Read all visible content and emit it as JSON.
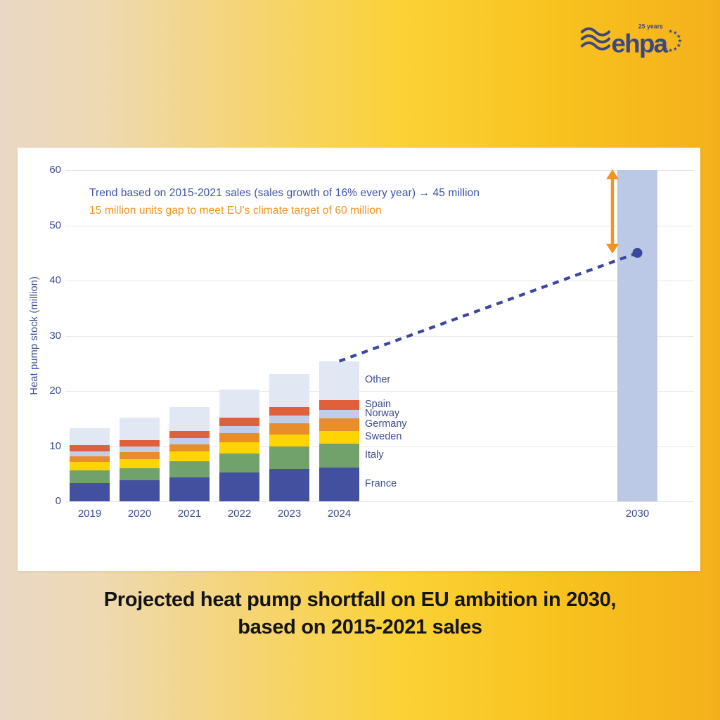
{
  "logo": {
    "brand": "ehpa",
    "badge": "25 years"
  },
  "caption": {
    "line1": "Projected heat pump shortfall on EU ambition in 2030,",
    "line2": "based on 2015-2021 sales"
  },
  "chart_data": {
    "type": "bar",
    "stacked": true,
    "title": "",
    "xlabel": "",
    "ylabel": "Heat pump stock (million)",
    "ylim": [
      0,
      60
    ],
    "ytick_step": 10,
    "grid": true,
    "categories": [
      "2019",
      "2020",
      "2021",
      "2022",
      "2023",
      "2024"
    ],
    "series": [
      {
        "name": "France",
        "color": "#4350a0",
        "values": [
          3.3,
          3.8,
          4.3,
          5.2,
          5.9,
          6.1
        ]
      },
      {
        "name": "Italy",
        "color": "#71a26c",
        "values": [
          2.3,
          2.2,
          2.9,
          3.5,
          4.0,
          4.3
        ]
      },
      {
        "name": "Sweden",
        "color": "#ffd403",
        "values": [
          1.5,
          1.7,
          1.8,
          2.0,
          2.2,
          2.4
        ]
      },
      {
        "name": "Germany",
        "color": "#e88d2c",
        "values": [
          1.1,
          1.2,
          1.3,
          1.6,
          2.0,
          2.25
        ]
      },
      {
        "name": "Norway",
        "color": "#c2cee8",
        "values": [
          0.9,
          1.0,
          1.2,
          1.3,
          1.4,
          1.55
        ]
      },
      {
        "name": "Spain",
        "color": "#e0603c",
        "values": [
          1.1,
          1.2,
          1.3,
          1.5,
          1.6,
          1.75
        ]
      },
      {
        "name": "Other",
        "color": "#e2e7f4",
        "values": [
          3.1,
          4.1,
          4.3,
          5.2,
          6.0,
          7.05
        ]
      }
    ],
    "totals": [
      13.3,
      15.2,
      17.1,
      20.3,
      23.1,
      25.4
    ],
    "target_bar": {
      "label": "2030",
      "value": 60,
      "color": "#bcc9e6"
    },
    "trend": {
      "from_category": "2024",
      "from_value": 25.4,
      "to_category": "2030",
      "to_value": 45,
      "style": "dashed",
      "color": "#3a46a0"
    },
    "gap_arrow": {
      "at_category": "2030",
      "from": 45,
      "to": 60,
      "color": "#f0941f"
    },
    "annotations": [
      {
        "text": "Trend based on 2015-2021 sales (sales growth of 16% every year) → 45 million",
        "color": "#3d52a8"
      },
      {
        "text": "15 million units gap to meet EU's climate target of 60 million",
        "color": "#f0941f"
      }
    ],
    "legend_position": "right-of-last-bar"
  }
}
